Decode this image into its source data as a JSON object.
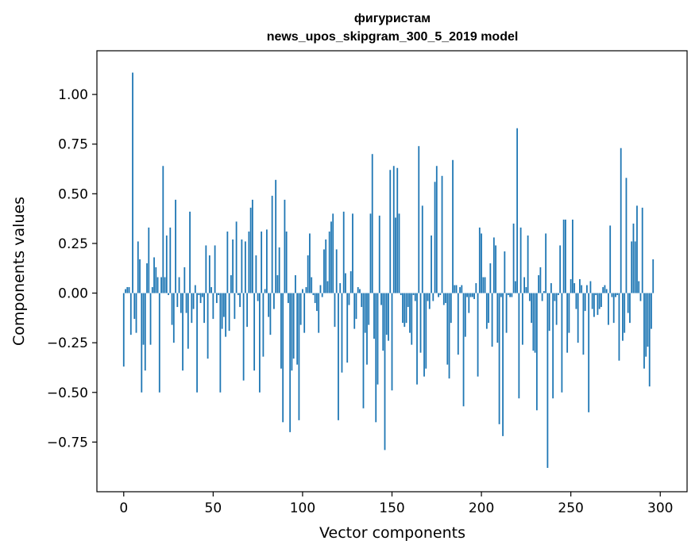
{
  "chart_data": {
    "type": "bar",
    "title": "фигуристам",
    "subtitle": "news_upos_skipgram_300_5_2019 model",
    "xlabel": "Vector components",
    "ylabel": "Components values",
    "xlim": [
      -15,
      315
    ],
    "ylim": [
      -1.0,
      1.22
    ],
    "xticks": [
      0,
      50,
      100,
      150,
      200,
      250,
      300
    ],
    "xtick_labels": [
      "0",
      "50",
      "100",
      "150",
      "200",
      "250",
      "300"
    ],
    "yticks": [
      -0.75,
      -0.5,
      -0.25,
      0.0,
      0.25,
      0.5,
      0.75,
      1.0
    ],
    "ytick_labels": [
      "−0.75",
      "−0.50",
      "−0.25",
      "0.00",
      "0.25",
      "0.50",
      "0.75",
      "1.00"
    ],
    "grid": false,
    "bar_color": "#1f77b4",
    "values": [
      -0.37,
      0.02,
      0.03,
      0.03,
      -0.21,
      1.11,
      -0.13,
      -0.2,
      0.26,
      0.17,
      -0.5,
      -0.26,
      -0.39,
      0.15,
      0.33,
      -0.26,
      0.03,
      0.18,
      0.13,
      0.08,
      -0.5,
      0.08,
      0.64,
      0.08,
      0.29,
      -0.01,
      0.33,
      -0.16,
      -0.25,
      0.47,
      -0.07,
      0.08,
      -0.1,
      -0.39,
      0.13,
      -0.1,
      -0.28,
      0.41,
      -0.15,
      -0.08,
      0.04,
      -0.5,
      -0.01,
      -0.05,
      -0.02,
      -0.15,
      0.24,
      -0.33,
      0.19,
      0.03,
      -0.13,
      0.24,
      -0.05,
      -0.01,
      -0.5,
      -0.18,
      -0.12,
      -0.22,
      0.31,
      -0.19,
      0.09,
      0.27,
      -0.13,
      0.36,
      -0.01,
      -0.07,
      0.27,
      -0.44,
      0.26,
      -0.17,
      0.31,
      0.43,
      0.47,
      -0.39,
      0.19,
      -0.04,
      -0.5,
      0.31,
      -0.32,
      0.02,
      0.32,
      -0.12,
      -0.21,
      0.49,
      -0.08,
      0.57,
      0.09,
      0.23,
      -0.38,
      -0.65,
      0.47,
      0.31,
      -0.05,
      -0.7,
      -0.39,
      -0.33,
      0.09,
      -0.36,
      -0.64,
      -0.16,
      0.02,
      -0.2,
      0.03,
      0.19,
      0.3,
      0.08,
      -0.01,
      -0.05,
      -0.09,
      -0.2,
      0.04,
      -0.02,
      0.22,
      0.27,
      0.06,
      0.31,
      0.36,
      0.4,
      -0.17,
      0.22,
      -0.64,
      0.05,
      -0.4,
      0.41,
      0.1,
      -0.35,
      -0.06,
      0.11,
      0.4,
      -0.18,
      -0.13,
      0.03,
      0.02,
      -0.07,
      -0.58,
      -0.2,
      -0.36,
      -0.16,
      0.4,
      0.7,
      -0.23,
      -0.65,
      -0.46,
      0.39,
      -0.06,
      -0.29,
      -0.79,
      -0.21,
      -0.24,
      0.62,
      -0.49,
      0.64,
      0.38,
      0.63,
      0.4,
      -0.01,
      -0.15,
      -0.17,
      -0.15,
      -0.07,
      -0.2,
      -0.26,
      -0.01,
      -0.04,
      -0.46,
      0.74,
      -0.3,
      0.44,
      -0.42,
      -0.38,
      -0.04,
      -0.08,
      0.29,
      -0.04,
      0.56,
      0.64,
      -0.02,
      -0.01,
      0.59,
      -0.06,
      -0.05,
      -0.36,
      -0.43,
      -0.15,
      0.67,
      0.04,
      0.04,
      -0.31,
      0.03,
      0.04,
      -0.57,
      -0.22,
      -0.02,
      -0.1,
      -0.02,
      -0.02,
      -0.03,
      0.05,
      -0.42,
      0.33,
      0.3,
      0.08,
      0.08,
      -0.18,
      -0.15,
      0.15,
      -0.27,
      0.28,
      0.24,
      -0.25,
      -0.66,
      -0.02,
      -0.72,
      0.21,
      -0.2,
      -0.01,
      -0.02,
      -0.02,
      0.35,
      0.06,
      0.83,
      -0.53,
      0.33,
      -0.26,
      0.08,
      0.03,
      0.29,
      -0.04,
      -0.15,
      -0.29,
      -0.3,
      -0.59,
      0.09,
      0.13,
      -0.04,
      0.01,
      0.3,
      -0.88,
      -0.19,
      0.05,
      -0.53,
      -0.04,
      -0.16,
      -0.01,
      0.24,
      -0.5,
      0.37,
      0.37,
      -0.3,
      -0.2,
      0.07,
      0.37,
      0.05,
      -0.08,
      -0.25,
      0.07,
      0.04,
      -0.31,
      -0.09,
      0.04,
      -0.6,
      0.06,
      -0.08,
      -0.12,
      -0.01,
      -0.11,
      -0.08,
      -0.07,
      0.03,
      0.04,
      0.02,
      -0.16,
      0.34,
      -0.02,
      -0.15,
      -0.02,
      -0.01,
      -0.34,
      0.73,
      -0.24,
      -0.2,
      0.58,
      -0.1,
      -0.15,
      0.26,
      0.35,
      0.26,
      0.44,
      0.06,
      -0.04,
      0.43,
      -0.38,
      -0.32,
      -0.27,
      -0.47,
      -0.18,
      0.17
    ]
  }
}
